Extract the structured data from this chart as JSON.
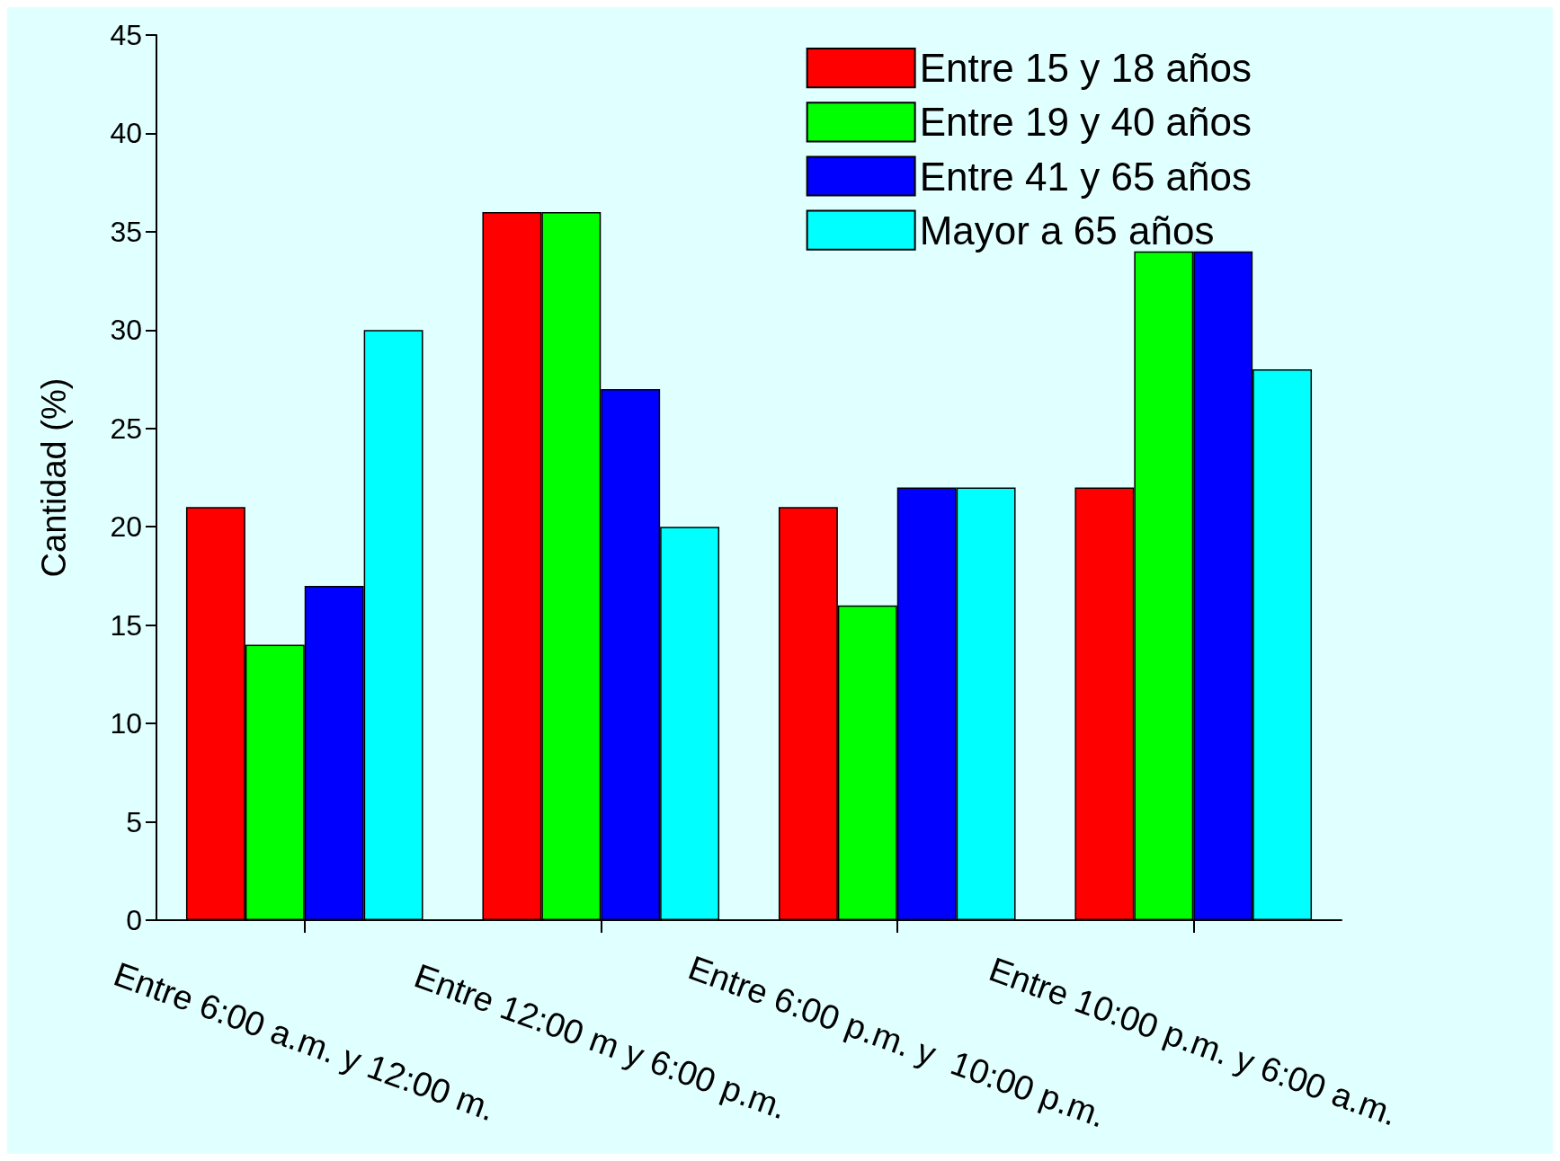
{
  "chart_data": {
    "type": "bar",
    "ylabel": "Cantidad (%)",
    "categories": [
      "Entre 6:00 a.m. y 12:00 m.",
      "Entre 12:00 m y 6:00 p.m.",
      "Entre 6:00 p.m. y  10:00 p.m.",
      "Entre 10:00 p.m. y 6:00 a.m."
    ],
    "series": [
      {
        "name": "Entre 15 y 18 años",
        "color": "#ff0000",
        "values": [
          21,
          36,
          21,
          22
        ]
      },
      {
        "name": "Entre 19 y 40 años",
        "color": "#00ff00",
        "values": [
          14,
          36,
          16,
          34
        ]
      },
      {
        "name": "Entre 41 y 65 años",
        "color": "#0000ff",
        "values": [
          17,
          27,
          22,
          34
        ]
      },
      {
        "name": "Mayor a 65 años",
        "color": "#00ffff",
        "values": [
          30,
          20,
          22,
          28
        ]
      }
    ],
    "ylim": [
      0,
      45
    ],
    "yticks": [
      0,
      5,
      10,
      15,
      20,
      25,
      30,
      35,
      40,
      45
    ],
    "grid": false,
    "legend": "top right"
  }
}
